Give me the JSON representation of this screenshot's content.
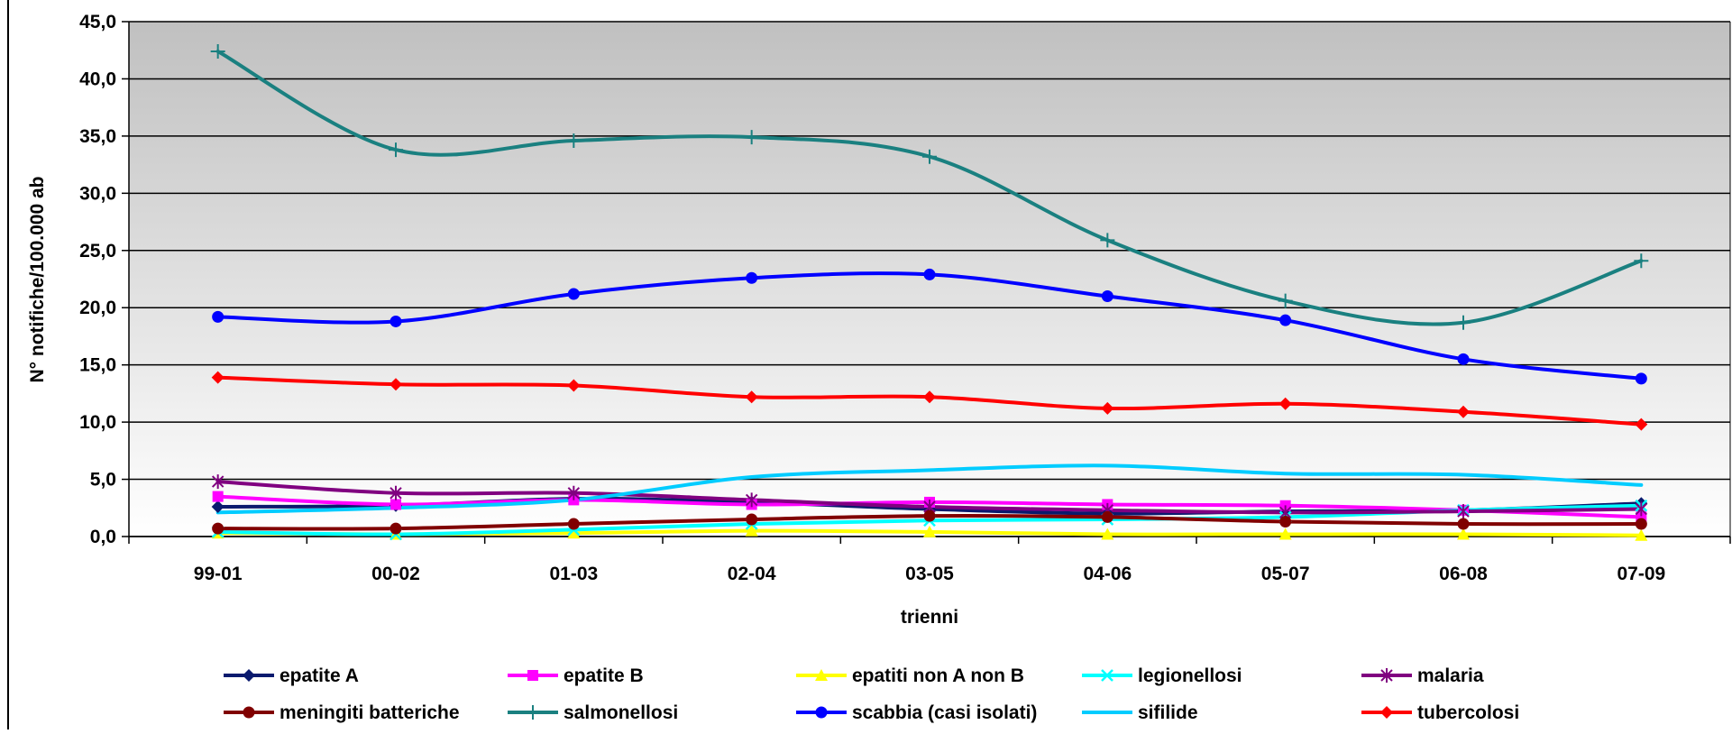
{
  "chart_data": {
    "type": "line",
    "title": "",
    "xlabel": "trienni",
    "ylabel": "N° notifiche/100.000 ab",
    "ylim": [
      0,
      45
    ],
    "yticks": [
      "0,0",
      "5,0",
      "10,0",
      "15,0",
      "20,0",
      "25,0",
      "30,0",
      "35,0",
      "40,0",
      "45,0"
    ],
    "categories": [
      "99-01",
      "00-02",
      "01-03",
      "02-04",
      "03-05",
      "04-06",
      "05-07",
      "06-08",
      "07-09"
    ],
    "grid": true,
    "legend_position": "bottom",
    "series": [
      {
        "name": "epatite A",
        "color": "#0a1a6e",
        "marker": "diamond",
        "values": [
          2.6,
          2.7,
          3.3,
          3.0,
          2.4,
          2.0,
          2.2,
          2.3,
          2.9
        ]
      },
      {
        "name": "epatite B",
        "color": "#ff00ff",
        "marker": "square",
        "values": [
          3.5,
          2.8,
          3.2,
          2.8,
          3.0,
          2.8,
          2.7,
          2.3,
          1.7
        ]
      },
      {
        "name": "epatiti non A non B",
        "color": "#ffff00",
        "marker": "triangle",
        "values": [
          0.3,
          0.2,
          0.3,
          0.5,
          0.4,
          0.2,
          0.2,
          0.2,
          0.1
        ]
      },
      {
        "name": "legionellosi",
        "color": "#00ffff",
        "marker": "x",
        "values": [
          0.4,
          0.2,
          0.6,
          1.1,
          1.4,
          1.5,
          1.7,
          2.3,
          2.7
        ]
      },
      {
        "name": "malaria",
        "color": "#800080",
        "marker": "star",
        "values": [
          4.8,
          3.8,
          3.8,
          3.2,
          2.6,
          2.3,
          2.1,
          2.2,
          2.4
        ]
      },
      {
        "name": "meningiti batteriche",
        "color": "#800000",
        "marker": "circle",
        "values": [
          0.7,
          0.7,
          1.1,
          1.5,
          1.8,
          1.7,
          1.3,
          1.1,
          1.1
        ]
      },
      {
        "name": "salmonellosi",
        "color": "#1a8080",
        "marker": "plus",
        "values": [
          42.4,
          33.8,
          34.6,
          34.9,
          33.2,
          25.9,
          20.6,
          18.7,
          24.1
        ]
      },
      {
        "name": "scabbia (casi isolati)",
        "color": "#0000ff",
        "marker": "circle",
        "values": [
          19.2,
          18.8,
          21.2,
          22.6,
          22.9,
          21.0,
          18.9,
          15.5,
          13.8
        ]
      },
      {
        "name": "sifilide",
        "color": "#00ccff",
        "marker": "none",
        "values": [
          2.1,
          2.5,
          3.2,
          5.2,
          5.8,
          6.2,
          5.5,
          5.4,
          4.5
        ]
      },
      {
        "name": "tubercolosi",
        "color": "#ff0000",
        "marker": "diamond",
        "values": [
          13.9,
          13.3,
          13.2,
          12.2,
          12.2,
          11.2,
          11.6,
          10.9,
          9.8
        ]
      }
    ]
  }
}
